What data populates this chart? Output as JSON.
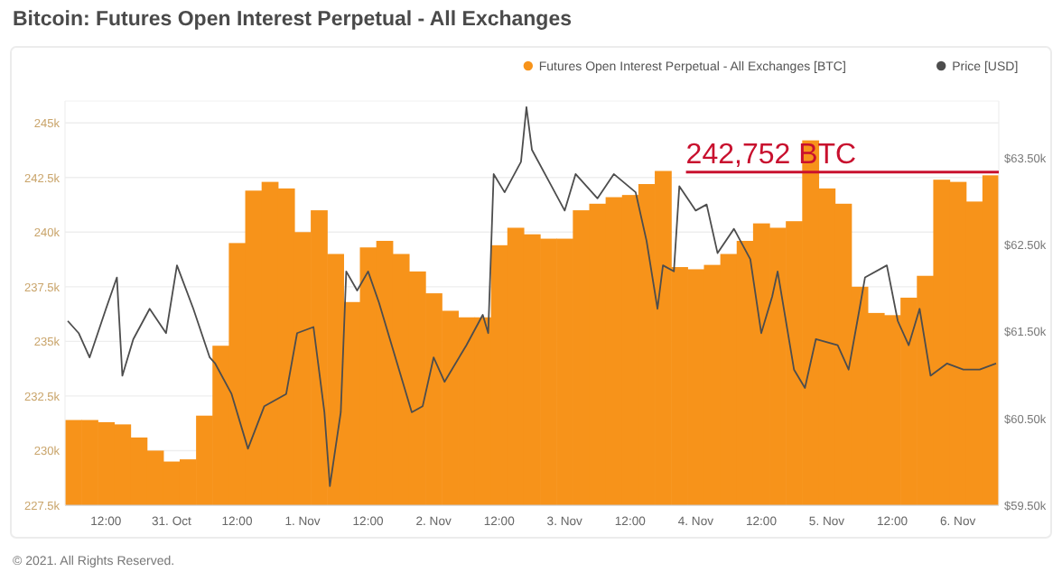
{
  "chart_data": {
    "type": "bar",
    "title": "Bitcoin: Futures Open Interest Perpetual - All Exchanges",
    "annotations": [
      "© 2021. All Rights Reserved."
    ],
    "xlim": [
      "2021-10-30T04:30",
      "2021-11-06T07:30"
    ],
    "xticks": [
      {
        "value": "2021-10-30T12:00",
        "label": "12:00"
      },
      {
        "value": "2021-10-31T00:00",
        "label": "31. Oct"
      },
      {
        "value": "2021-10-31T12:00",
        "label": "12:00"
      },
      {
        "value": "2021-11-01T00:00",
        "label": "1. Nov"
      },
      {
        "value": "2021-11-01T12:00",
        "label": "12:00"
      },
      {
        "value": "2021-11-02T00:00",
        "label": "2. Nov"
      },
      {
        "value": "2021-11-02T12:00",
        "label": "12:00"
      },
      {
        "value": "2021-11-03T00:00",
        "label": "3. Nov"
      },
      {
        "value": "2021-11-03T12:00",
        "label": "12:00"
      },
      {
        "value": "2021-11-04T00:00",
        "label": "4. Nov"
      },
      {
        "value": "2021-11-04T12:00",
        "label": "12:00"
      },
      {
        "value": "2021-11-05T00:00",
        "label": "5. Nov"
      },
      {
        "value": "2021-11-05T12:00",
        "label": "12:00"
      },
      {
        "value": "2021-11-06T00:00",
        "label": "6. Nov"
      }
    ],
    "ylim": [
      227.5,
      246
    ],
    "yticks": [
      {
        "value": 227.5,
        "label": "227.5k"
      },
      {
        "value": 230,
        "label": "230k"
      },
      {
        "value": 232.5,
        "label": "232.5k"
      },
      {
        "value": 235,
        "label": "235k"
      },
      {
        "value": 237.5,
        "label": "237.5k"
      },
      {
        "value": 240,
        "label": "240k"
      },
      {
        "value": 242.5,
        "label": "242.5k"
      },
      {
        "value": 245,
        "label": "245k"
      }
    ],
    "y2lim": [
      59.5,
      64.15
    ],
    "y2ticks": [
      {
        "value": 59.5,
        "label": "$59.50k"
      },
      {
        "value": 60.5,
        "label": "$60.50k"
      },
      {
        "value": 61.5,
        "label": "$61.50k"
      },
      {
        "value": 62.5,
        "label": "$62.50k"
      },
      {
        "value": 63.5,
        "label": "$63.50k"
      }
    ],
    "grid": "y",
    "legend": "top right",
    "ref_lines": [
      {
        "axis": "y",
        "value": 242.752,
        "label": "242,752 BTC",
        "color": "#c8102e"
      }
    ],
    "series": [
      {
        "name": "Futures Open Interest Perpetual - All Exchanges [BTC]",
        "color": "#f7931a",
        "x": [
          "2021-10-30T06:00",
          "2021-10-30T09:00",
          "2021-10-30T12:00",
          "2021-10-30T15:00",
          "2021-10-30T18:00",
          "2021-10-30T21:00",
          "2021-10-31T00:00",
          "2021-10-31T03:00",
          "2021-10-31T06:00",
          "2021-10-31T09:00",
          "2021-10-31T12:00",
          "2021-10-31T15:00",
          "2021-10-31T18:00",
          "2021-10-31T21:00",
          "2021-11-01T00:00",
          "2021-11-01T03:00",
          "2021-11-01T06:00",
          "2021-11-01T09:00",
          "2021-11-01T12:00",
          "2021-11-01T15:00",
          "2021-11-01T18:00",
          "2021-11-01T21:00",
          "2021-11-02T00:00",
          "2021-11-02T03:00",
          "2021-11-02T06:00",
          "2021-11-02T09:00",
          "2021-11-02T12:00",
          "2021-11-02T15:00",
          "2021-11-02T18:00",
          "2021-11-02T21:00",
          "2021-11-03T00:00",
          "2021-11-03T03:00",
          "2021-11-03T06:00",
          "2021-11-03T09:00",
          "2021-11-03T12:00",
          "2021-11-03T15:00",
          "2021-11-03T18:00",
          "2021-11-03T21:00",
          "2021-11-04T00:00",
          "2021-11-04T03:00",
          "2021-11-04T06:00",
          "2021-11-04T09:00",
          "2021-11-04T12:00",
          "2021-11-04T15:00",
          "2021-11-04T18:00",
          "2021-11-04T21:00",
          "2021-11-05T00:00",
          "2021-11-05T03:00",
          "2021-11-05T06:00",
          "2021-11-05T09:00",
          "2021-11-05T12:00",
          "2021-11-05T15:00",
          "2021-11-05T18:00",
          "2021-11-05T21:00",
          "2021-11-06T00:00",
          "2021-11-06T03:00",
          "2021-11-06T06:00"
        ],
        "values": [
          231.4,
          231.4,
          231.3,
          231.2,
          230.6,
          230.0,
          229.5,
          229.6,
          231.6,
          234.8,
          239.5,
          241.9,
          242.3,
          242.0,
          240.0,
          241.0,
          239.0,
          236.8,
          239.3,
          239.6,
          239.0,
          238.2,
          237.2,
          236.4,
          236.1,
          236.1,
          239.4,
          240.2,
          239.9,
          239.7,
          239.7,
          241.0,
          241.3,
          241.6,
          241.7,
          242.2,
          242.8,
          238.4,
          238.3,
          238.5,
          239.0,
          239.6,
          240.4,
          240.2,
          240.5,
          244.2,
          242.0,
          241.3,
          237.5,
          236.3,
          236.2,
          237.0,
          238.0,
          242.4,
          242.3,
          241.4,
          242.6
        ]
      },
      {
        "name": "Price [USD]",
        "type": "line",
        "axis": "y2",
        "color": "#4d4d4d",
        "x": [
          "2021-10-30T05:00",
          "2021-10-30T07:00",
          "2021-10-30T09:00",
          "2021-10-30T12:00",
          "2021-10-30T14:00",
          "2021-10-30T15:00",
          "2021-10-30T17:00",
          "2021-10-30T20:00",
          "2021-10-30T23:00",
          "2021-10-31T01:00",
          "2021-10-31T04:00",
          "2021-10-31T07:00",
          "2021-10-31T08:00",
          "2021-10-31T11:00",
          "2021-10-31T14:00",
          "2021-10-31T17:00",
          "2021-10-31T21:00",
          "2021-10-31T23:00",
          "2021-11-01T02:00",
          "2021-11-01T04:00",
          "2021-11-01T05:00",
          "2021-11-01T07:00",
          "2021-11-01T08:00",
          "2021-11-01T10:00",
          "2021-11-01T12:00",
          "2021-11-01T14:00",
          "2021-11-01T17:00",
          "2021-11-01T20:00",
          "2021-11-01T22:00",
          "2021-11-02T00:00",
          "2021-11-02T02:00",
          "2021-11-02T06:00",
          "2021-11-02T09:00",
          "2021-11-02T10:00",
          "2021-11-02T11:00",
          "2021-11-02T13:00",
          "2021-11-02T16:00",
          "2021-11-02T17:00",
          "2021-11-02T18:00",
          "2021-11-02T21:00",
          "2021-11-03T00:00",
          "2021-11-03T02:00",
          "2021-11-03T06:00",
          "2021-11-03T09:00",
          "2021-11-03T13:00",
          "2021-11-03T15:00",
          "2021-11-03T17:00",
          "2021-11-03T18:00",
          "2021-11-03T20:00",
          "2021-11-03T21:00",
          "2021-11-04T00:00",
          "2021-11-04T02:00",
          "2021-11-04T04:00",
          "2021-11-04T07:00",
          "2021-11-04T10:00",
          "2021-11-04T12:00",
          "2021-11-04T14:00",
          "2021-11-04T15:00",
          "2021-11-04T18:00",
          "2021-11-04T20:00",
          "2021-11-04T22:00",
          "2021-11-05T02:00",
          "2021-11-05T04:00",
          "2021-11-05T06:00",
          "2021-11-05T07:00",
          "2021-11-05T11:00",
          "2021-11-05T13:00",
          "2021-11-05T15:00",
          "2021-11-05T17:00",
          "2021-11-05T19:00",
          "2021-11-05T22:00",
          "2021-11-06T01:00",
          "2021-11-06T04:00",
          "2021-11-06T07:00"
        ],
        "values": [
          61.62,
          61.48,
          61.2,
          61.76,
          62.12,
          60.99,
          61.41,
          61.76,
          61.48,
          62.26,
          61.76,
          61.2,
          61.13,
          60.78,
          60.15,
          60.64,
          60.78,
          61.48,
          61.55,
          60.57,
          59.72,
          60.57,
          62.19,
          61.97,
          62.19,
          61.83,
          61.2,
          60.57,
          60.64,
          61.2,
          60.92,
          61.34,
          61.69,
          61.48,
          63.31,
          63.1,
          63.45,
          64.08,
          63.59,
          63.24,
          62.89,
          63.31,
          63.03,
          63.31,
          63.1,
          62.54,
          61.76,
          62.26,
          62.19,
          63.17,
          62.89,
          62.96,
          62.4,
          62.68,
          62.33,
          61.48,
          61.9,
          62.19,
          61.06,
          60.85,
          61.41,
          61.34,
          61.06,
          61.76,
          62.12,
          62.26,
          61.62,
          61.34,
          61.76,
          60.99,
          61.13,
          61.06,
          61.06,
          61.13
        ]
      }
    ]
  }
}
